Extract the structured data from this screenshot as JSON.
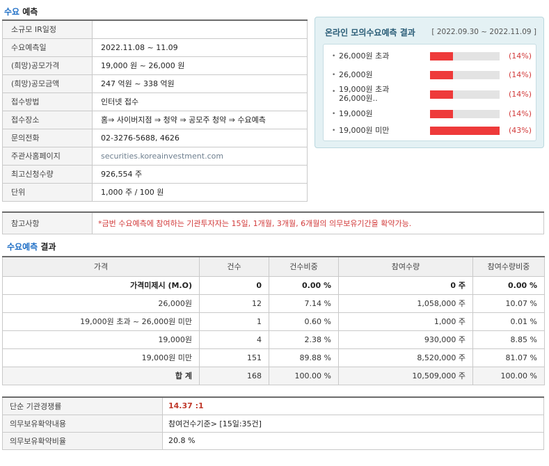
{
  "forecast": {
    "title_hl": "수요",
    "title_rest": " 예측",
    "rows": [
      {
        "label": "소규모 IR일정",
        "value": ""
      },
      {
        "label": "수요예측일",
        "value": "2022.11.08 ~ 11.09"
      },
      {
        "label": "(희망)공모가격",
        "value": "19,000 원 ~ 26,000 원"
      },
      {
        "label": "(희망)공모금액",
        "value": "247 억원 ~ 338 억원"
      },
      {
        "label": "접수방법",
        "value": "인터넷 접수"
      },
      {
        "label": "접수장소",
        "value": "홈⇒ 사이버지점 ⇒ 청약 ⇒ 공모주 청약 ⇒ 수요예측"
      },
      {
        "label": "문의전화",
        "value": "02-3276-5688, 4626"
      },
      {
        "label": "주관사홈페이지",
        "value": "securities.koreainvestment.com"
      },
      {
        "label": "최고신청수량",
        "value": "926,554 주"
      },
      {
        "label": "단위",
        "value": "1,000 주 / 100 원"
      }
    ]
  },
  "online": {
    "title": "온라인 모의수요예측 결과",
    "period": "[ 2022.09.30 ~ 2022.11.09 ]",
    "items": [
      {
        "label": "26,000원 초과",
        "pct_text": "(14%)",
        "pct": 14
      },
      {
        "label": "26,000원",
        "pct_text": "(14%)",
        "pct": 14
      },
      {
        "label": "19,000원 초과 26,000원..",
        "pct_text": "(14%)",
        "pct": 14
      },
      {
        "label": "19,000원",
        "pct_text": "(14%)",
        "pct": 14
      },
      {
        "label": "19,000원 미만",
        "pct_text": "(43%)",
        "pct": 43
      }
    ],
    "bar_color": "#ee3a3a"
  },
  "note": {
    "label": "참고사항",
    "text": "*금번 수요예측에 참여하는 기관투자자는 15일, 1개월, 3개월, 6개월의 의무보유기간을 확약가능."
  },
  "result": {
    "title_hl": "수요예측",
    "title_rest": " 결과",
    "headers": [
      "가격",
      "건수",
      "건수비중",
      "참여수량",
      "참여수량비중"
    ],
    "rows": [
      [
        "가격미제시 (M.O)",
        "0",
        "0.00 %",
        "0 주",
        "0.00 %"
      ],
      [
        "26,000원",
        "12",
        "7.14 %",
        "1,058,000 주",
        "10.07 %"
      ],
      [
        "19,000원 초과 ~ 26,000원 미만",
        "1",
        "0.60 %",
        "1,000 주",
        "0.01 %"
      ],
      [
        "19,000원",
        "4",
        "2.38 %",
        "930,000 주",
        "8.85 %"
      ],
      [
        "19,000원 미만",
        "151",
        "89.88 %",
        "8,520,000 주",
        "81.07 %"
      ],
      [
        "합 계",
        "168",
        "100.00 %",
        "10,509,000 주",
        "100.00 %"
      ]
    ]
  },
  "summary": [
    {
      "label": "단순 기관경쟁률",
      "value": "14.37 :1"
    },
    {
      "label": "의무보유확약내용",
      "value": "참여건수기준> [15일:35건]"
    },
    {
      "label": "의무보유확약비율",
      "value": "20.8 %"
    }
  ],
  "colors": {
    "accent": "#1f6fc6",
    "alert": "#d23a3a"
  }
}
